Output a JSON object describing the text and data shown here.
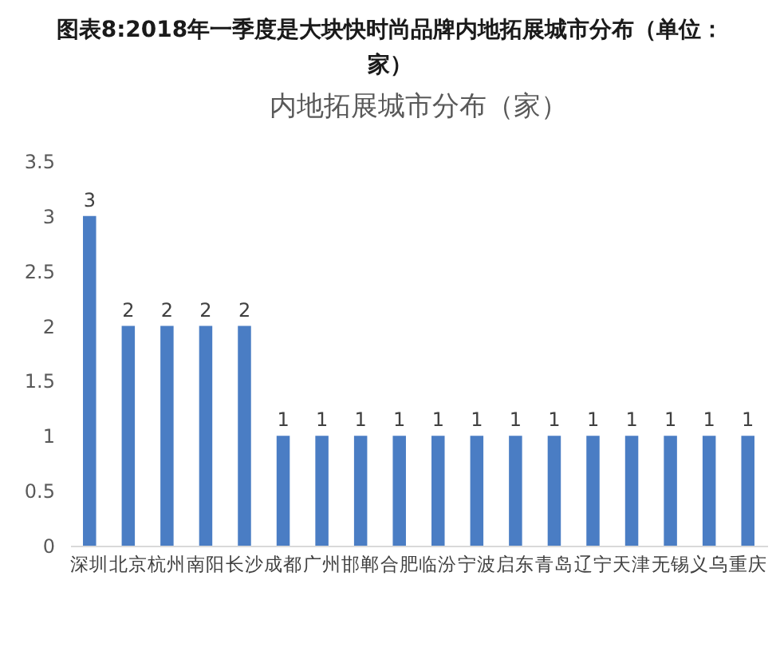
{
  "chart_data": {
    "type": "bar",
    "title": "图表8:2018年一季度是大块快时尚品牌内地拓展城市分布（单位：家）",
    "subtitle": "内地拓展城市分布（家）",
    "categories": [
      "深圳",
      "北京",
      "杭州",
      "南阳",
      "长沙",
      "成都",
      "广州",
      "邯郸",
      "合肥",
      "临汾",
      "宁波",
      "启东",
      "青岛",
      "辽宁",
      "天津",
      "无锡",
      "义乌",
      "重庆"
    ],
    "values": [
      3,
      2,
      2,
      2,
      2,
      1,
      1,
      1,
      1,
      1,
      1,
      1,
      1,
      1,
      1,
      1,
      1,
      1
    ],
    "color": "#4a7dc4",
    "ylim": [
      0,
      3.5
    ],
    "yticks": [
      0,
      0.5,
      1,
      1.5,
      2,
      2.5,
      3,
      3.5
    ],
    "grid": false,
    "data_labels": true
  }
}
